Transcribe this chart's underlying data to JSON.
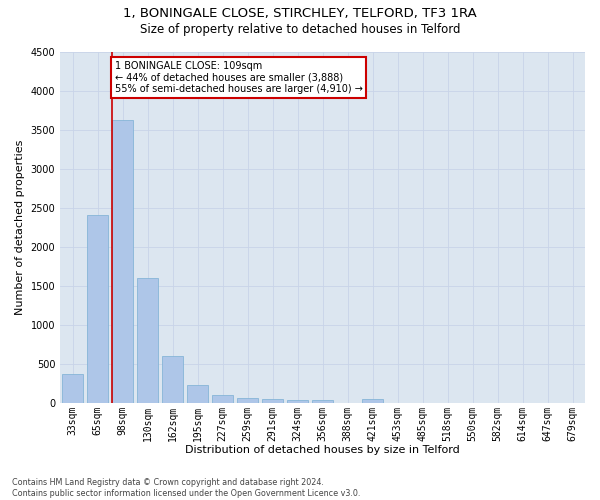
{
  "title1": "1, BONINGALE CLOSE, STIRCHLEY, TELFORD, TF3 1RA",
  "title2": "Size of property relative to detached houses in Telford",
  "xlabel": "Distribution of detached houses by size in Telford",
  "ylabel": "Number of detached properties",
  "categories": [
    "33sqm",
    "65sqm",
    "98sqm",
    "130sqm",
    "162sqm",
    "195sqm",
    "227sqm",
    "259sqm",
    "291sqm",
    "324sqm",
    "356sqm",
    "388sqm",
    "421sqm",
    "453sqm",
    "485sqm",
    "518sqm",
    "550sqm",
    "582sqm",
    "614sqm",
    "647sqm",
    "679sqm"
  ],
  "values": [
    375,
    2400,
    3625,
    1600,
    600,
    225,
    100,
    60,
    55,
    40,
    30,
    0,
    50,
    0,
    0,
    0,
    0,
    0,
    0,
    0,
    0
  ],
  "bar_color": "#aec6e8",
  "bar_edge_color": "#7aafd4",
  "vline_color": "#cc0000",
  "annotation_text": "1 BONINGALE CLOSE: 109sqm\n← 44% of detached houses are smaller (3,888)\n55% of semi-detached houses are larger (4,910) →",
  "annotation_box_color": "#ffffff",
  "annotation_box_edge_color": "#cc0000",
  "ylim": [
    0,
    4500
  ],
  "yticks": [
    0,
    500,
    1000,
    1500,
    2000,
    2500,
    3000,
    3500,
    4000,
    4500
  ],
  "grid_color": "#c8d4e8",
  "bg_color": "#dce6f0",
  "footnote": "Contains HM Land Registry data © Crown copyright and database right 2024.\nContains public sector information licensed under the Open Government Licence v3.0.",
  "title1_fontsize": 9.5,
  "title2_fontsize": 8.5,
  "xlabel_fontsize": 8,
  "ylabel_fontsize": 8,
  "tick_fontsize": 7,
  "annot_fontsize": 7
}
